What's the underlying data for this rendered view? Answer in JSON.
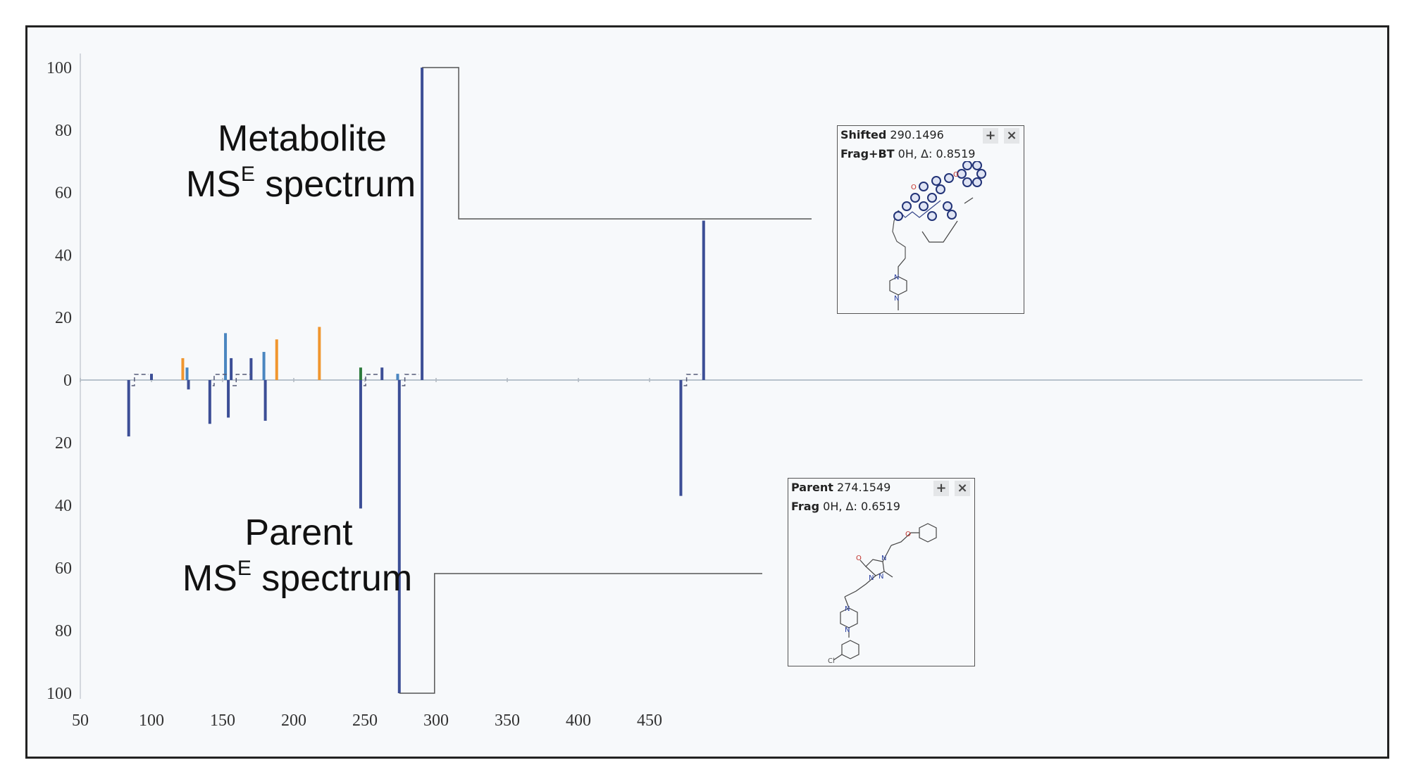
{
  "chart_data": {
    "type": "bar",
    "title": "",
    "xlabel": "",
    "ylabel": "",
    "xlim": [
      50,
      500
    ],
    "ylim_top": [
      0,
      100
    ],
    "ylim_bottom": [
      0,
      100
    ],
    "x_ticks": [
      "50",
      "100",
      "150",
      "200",
      "250",
      "300",
      "350",
      "400",
      "450"
    ],
    "y_ticks_top": [
      "100",
      "80",
      "60",
      "40",
      "20",
      "0"
    ],
    "y_ticks_bottom": [
      "20",
      "40",
      "60",
      "80",
      "100"
    ],
    "series": [
      {
        "name": "Metabolite MSE spectrum",
        "peaks": [
          {
            "mz": 100,
            "intensity": 2,
            "color": "#3c4e96"
          },
          {
            "mz": 122,
            "intensity": 7,
            "color": "#f0962e"
          },
          {
            "mz": 125,
            "intensity": 4,
            "color": "#4a86c0"
          },
          {
            "mz": 152,
            "intensity": 15,
            "color": "#4a86c0"
          },
          {
            "mz": 156,
            "intensity": 7,
            "color": "#3c4e96"
          },
          {
            "mz": 170,
            "intensity": 7,
            "color": "#3c4e96"
          },
          {
            "mz": 179,
            "intensity": 9,
            "color": "#4a86c0"
          },
          {
            "mz": 188,
            "intensity": 13,
            "color": "#f0962e"
          },
          {
            "mz": 218,
            "intensity": 17,
            "color": "#f0962e"
          },
          {
            "mz": 247,
            "intensity": 4,
            "color": "#2d7a3c"
          },
          {
            "mz": 262,
            "intensity": 4,
            "color": "#3c4e96"
          },
          {
            "mz": 273,
            "intensity": 2,
            "color": "#4a86c0"
          },
          {
            "mz": 290.1496,
            "intensity": 100,
            "color": "#3c4e96"
          },
          {
            "mz": 488,
            "intensity": 51,
            "color": "#3c4e96"
          }
        ]
      },
      {
        "name": "Parent MSE spectrum",
        "peaks": [
          {
            "mz": 84,
            "intensity": 18,
            "color": "#3c4e96"
          },
          {
            "mz": 126,
            "intensity": 3,
            "color": "#3c4e96"
          },
          {
            "mz": 141,
            "intensity": 14,
            "color": "#3c4e96"
          },
          {
            "mz": 154,
            "intensity": 12,
            "color": "#3c4e96"
          },
          {
            "mz": 180,
            "intensity": 13,
            "color": "#3c4e96"
          },
          {
            "mz": 247,
            "intensity": 41,
            "color": "#3c4e96"
          },
          {
            "mz": 274.1549,
            "intensity": 100,
            "color": "#3c4e96"
          },
          {
            "mz": 472,
            "intensity": 37,
            "color": "#3c4e96"
          }
        ]
      }
    ],
    "annotations": {
      "metabolite_title": "Metabolite",
      "metabolite_sub_main": "MS",
      "metabolite_sub_sup": "E",
      "metabolite_sub_rest": " spectrum",
      "parent_title": "Parent",
      "parent_sub_main": "MS",
      "parent_sub_sup": "E",
      "parent_sub_rest": " spectrum"
    }
  },
  "popups": {
    "metabolite": {
      "label1_bold": "Shifted",
      "label1_value": " 290.1496",
      "label2_bold": "Frag+BT",
      "label2_value": " 0H, Δ: 0.8519",
      "plus_icon": "+",
      "close_icon": "×"
    },
    "parent": {
      "label1_bold": "Parent",
      "label1_value": " 274.1549",
      "label2_bold": "Frag",
      "label2_value": " 0H, Δ: 0.6519",
      "plus_icon": "+",
      "close_icon": "×"
    }
  },
  "colors": {
    "navy": "#3c4e96",
    "orange": "#f0962e",
    "blue": "#4a86c0",
    "green": "#2d7a3c",
    "zero_line": "#b8c2cc"
  }
}
